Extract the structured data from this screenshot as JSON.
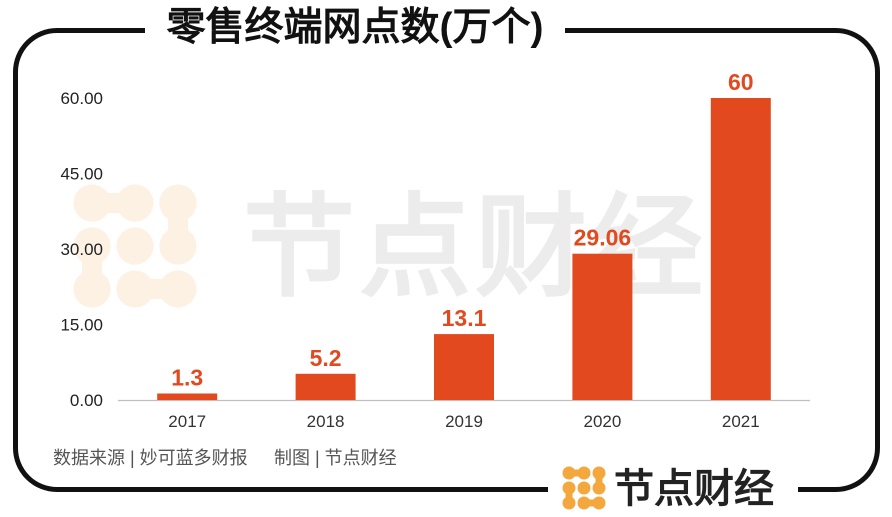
{
  "chart_data": {
    "type": "bar",
    "title": "零售终端网点数(万个)",
    "categories": [
      "2017",
      "2018",
      "2019",
      "2020",
      "2021"
    ],
    "values": [
      1.3,
      5.2,
      13.1,
      29.06,
      60
    ],
    "data_labels": [
      "1.3",
      "5.2",
      "13.1",
      "29.06",
      "60"
    ],
    "ylim": [
      0,
      60
    ],
    "yticks": [
      0,
      15,
      30,
      45,
      60
    ],
    "ytick_labels": [
      "0.00",
      "15.00",
      "30.00",
      "45.00",
      "60.00"
    ]
  },
  "source": {
    "data_source": "数据来源 | 妙可蓝多财报",
    "chart_credit": "制图 | 节点财经"
  },
  "watermark": {
    "text": "节点财经",
    "icon": "node-grid-icon"
  },
  "logo": {
    "text": "节点财经",
    "icon": "node-grid-icon"
  },
  "colors": {
    "bar": "#E2491F",
    "data_label": "#E2491F",
    "axis_line": "#BFBFBF",
    "frame": "#111111",
    "logo_icon": "#F4A73C",
    "watermark_icon": "#FDF1E3",
    "watermark_text": "#ECECEC"
  }
}
